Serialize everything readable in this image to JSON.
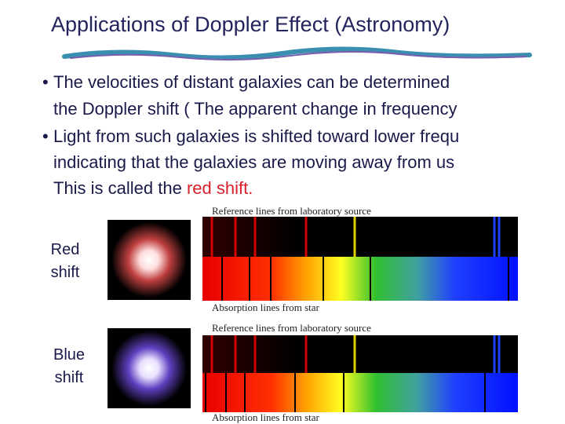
{
  "title": "Applications of Doppler Effect (Astronomy)",
  "bullets": [
    {
      "lines": [
        "The velocities of distant galaxies can be determined",
        "the Doppler shift ( The apparent change in frequency"
      ]
    },
    {
      "lines": [
        "Light from such galaxies is shifted toward lower frequ",
        "indicating that the galaxies are moving away from us",
        "This is called the"
      ],
      "highlight": "red shift."
    }
  ],
  "figures": [
    {
      "label_lines": [
        "Red",
        "shift"
      ],
      "reference_caption": "Reference lines from laboratory source",
      "absorption_caption": "Absorption lines from star"
    },
    {
      "label_lines": [
        "Blue",
        "shift"
      ],
      "reference_caption": "Reference lines from laboratory source",
      "absorption_caption": "Absorption lines from star"
    }
  ]
}
